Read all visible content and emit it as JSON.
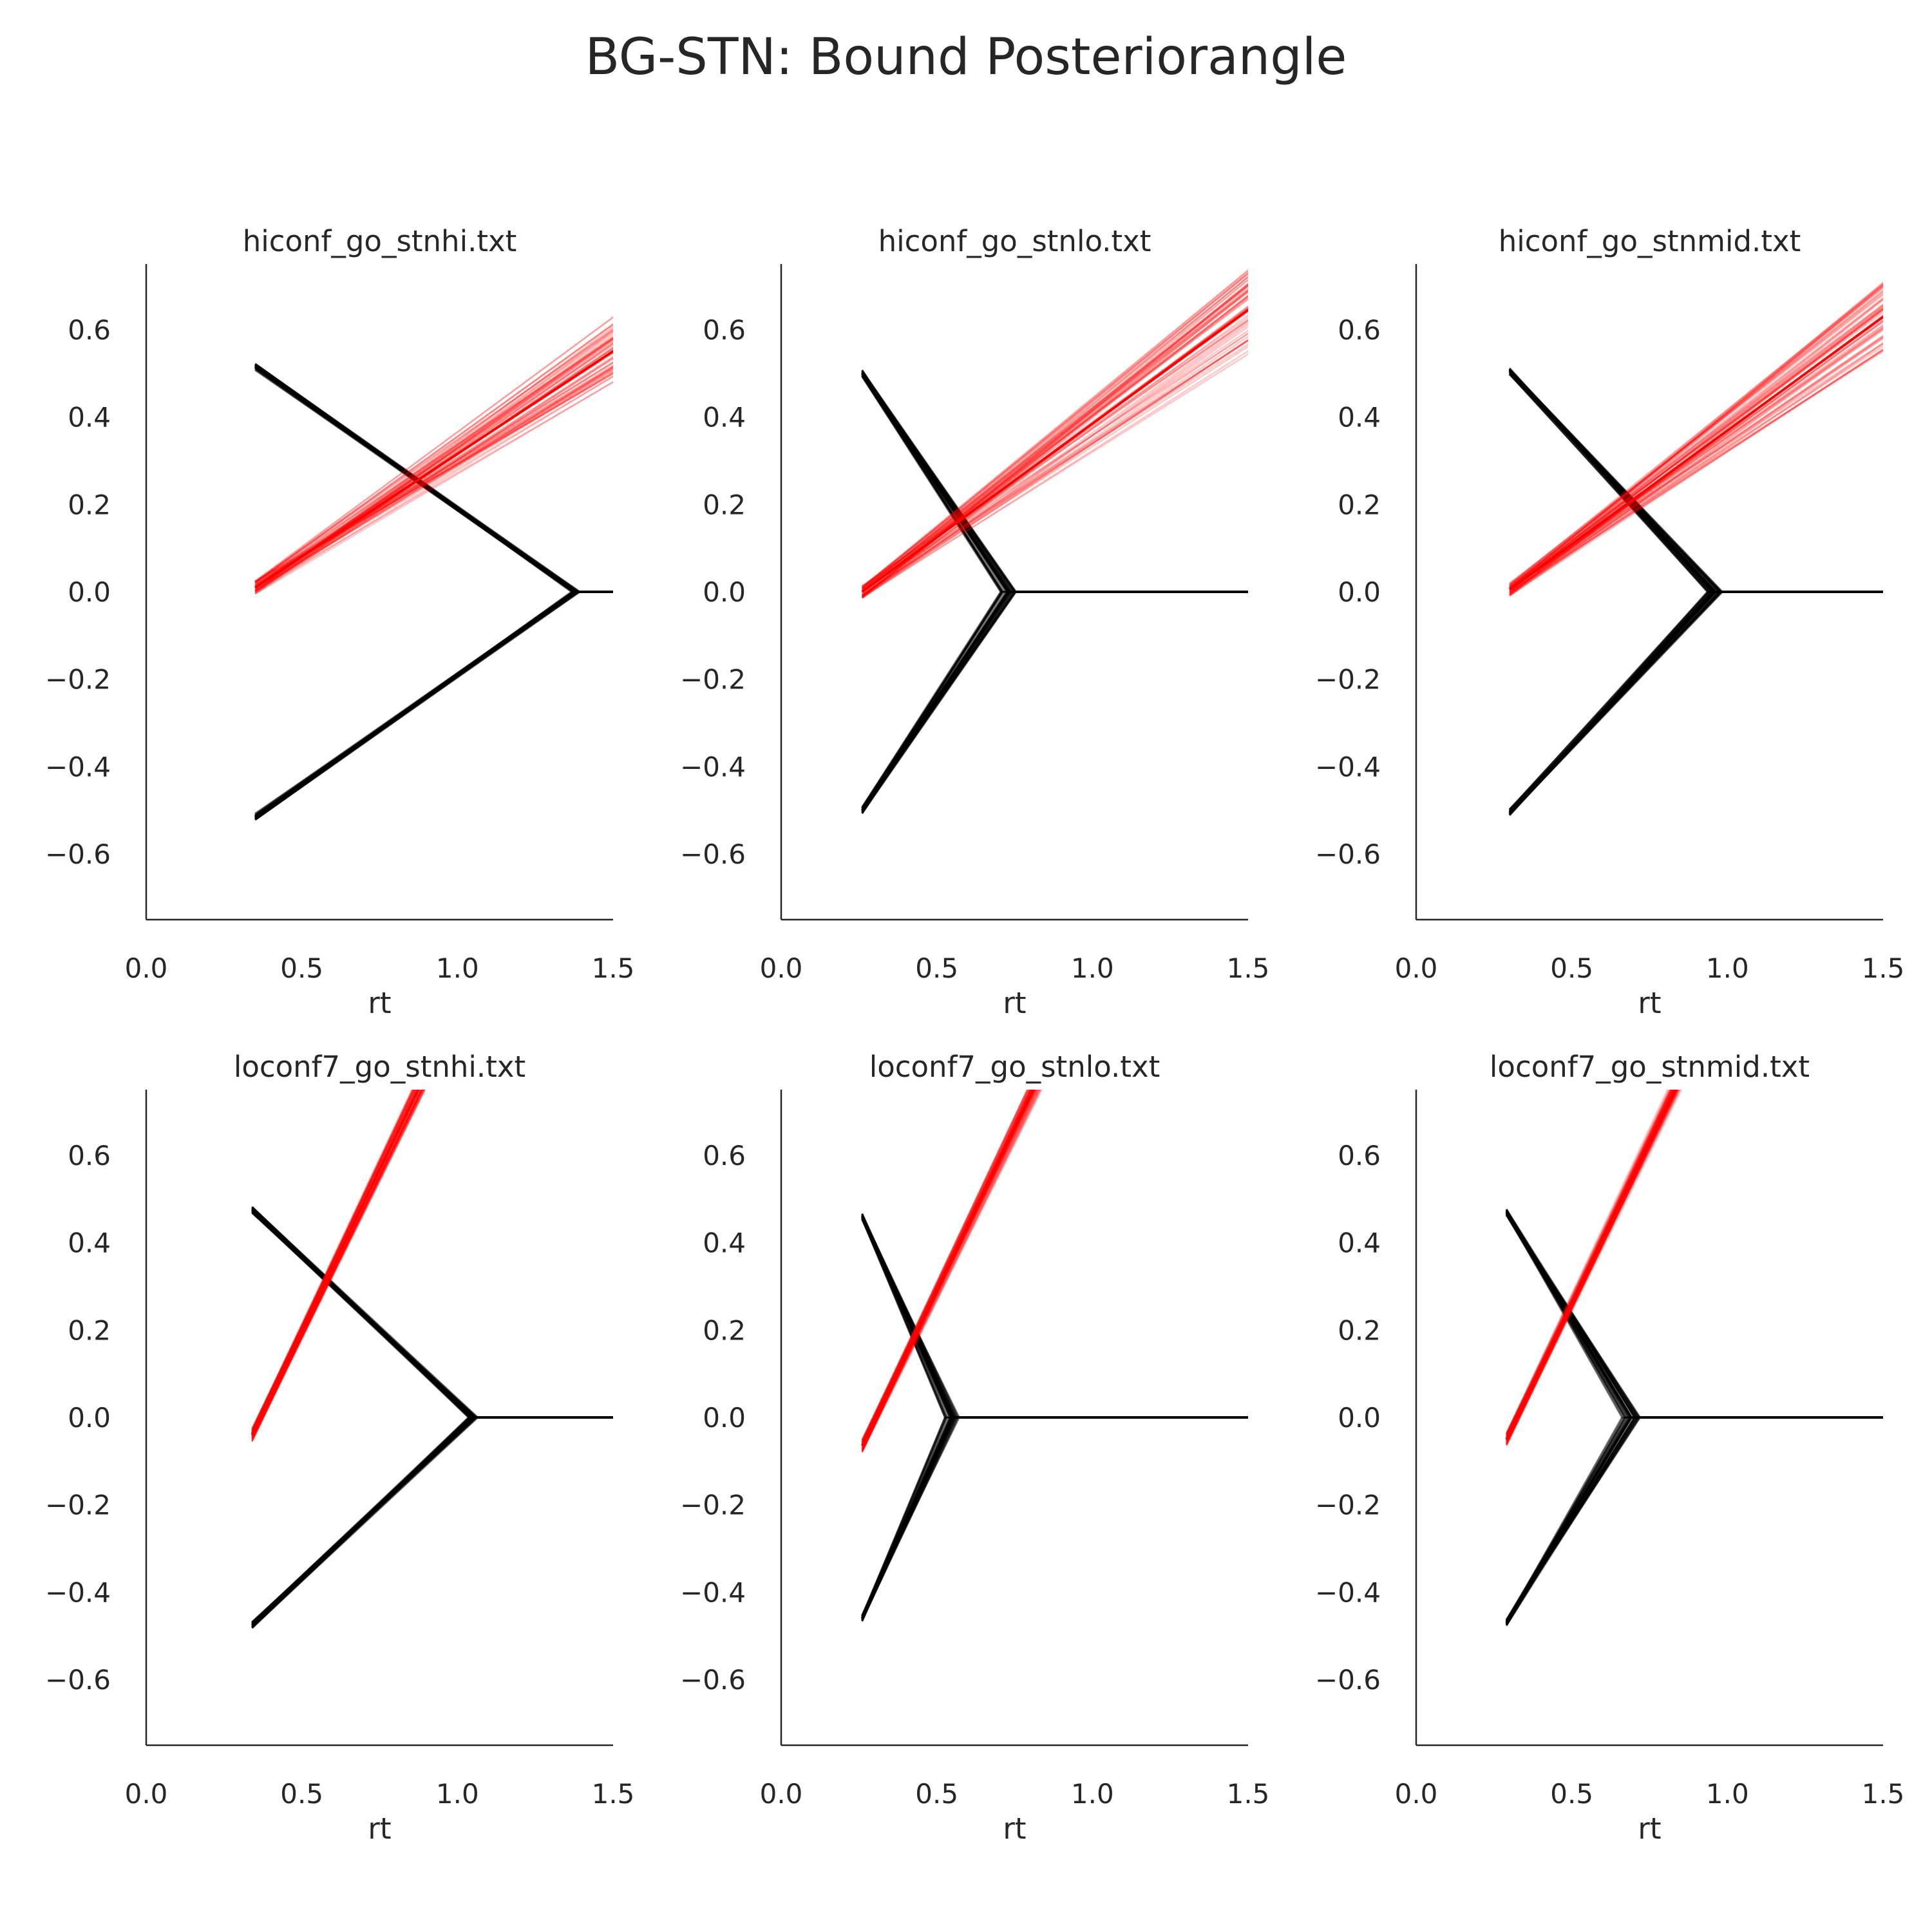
{
  "figure": {
    "title": "BG-STN: Bound Posteriorangle"
  },
  "colors": {
    "bound": "#000000",
    "drift": "#ff0000",
    "text": "#262626"
  },
  "chart_data": [
    {
      "type": "line",
      "title": "hiconf_go_stnhi.txt",
      "xlabel": "rt",
      "ylabel": "",
      "xlim": [
        0.0,
        1.5
      ],
      "ylim": [
        -0.75,
        0.75
      ],
      "xticks": [
        "0.0",
        "0.5",
        "1.0",
        "1.5"
      ],
      "yticks": [
        "−0.6",
        "−0.4",
        "−0.2",
        "0.0",
        "0.2",
        "0.4",
        "0.6"
      ],
      "bound": {
        "t0": 0.35,
        "a": 0.515,
        "t_collapse": 1.38,
        "end": 1.5,
        "spread": 0.03
      },
      "drift": {
        "t0": 0.35,
        "y0": 0.01,
        "slope": 0.47,
        "spread": 0.12
      }
    },
    {
      "type": "line",
      "title": "hiconf_go_stnlo.txt",
      "xlabel": "rt",
      "ylabel": "",
      "xlim": [
        0.0,
        1.5
      ],
      "ylim": [
        -0.75,
        0.75
      ],
      "xticks": [
        "0.0",
        "0.5",
        "1.0",
        "1.5"
      ],
      "yticks": [
        "−0.6",
        "−0.4",
        "−0.2",
        "0.0",
        "0.2",
        "0.4",
        "0.6"
      ],
      "bound": {
        "t0": 0.26,
        "a": 0.5,
        "t_collapse": 0.73,
        "end": 1.5,
        "spread": 0.05
      },
      "drift": {
        "t0": 0.26,
        "y0": 0.0,
        "slope": 0.52,
        "spread": 0.14
      }
    },
    {
      "type": "line",
      "title": "hiconf_go_stnmid.txt",
      "xlabel": "rt",
      "ylabel": "",
      "xlim": [
        0.0,
        1.5
      ],
      "ylim": [
        -0.75,
        0.75
      ],
      "xticks": [
        "0.0",
        "0.5",
        "1.0",
        "1.5"
      ],
      "yticks": [
        "−0.6",
        "−0.4",
        "−0.2",
        "0.0",
        "0.2",
        "0.4",
        "0.6"
      ],
      "bound": {
        "t0": 0.3,
        "a": 0.505,
        "t_collapse": 0.96,
        "end": 1.5,
        "spread": 0.05
      },
      "drift": {
        "t0": 0.3,
        "y0": 0.005,
        "slope": 0.52,
        "spread": 0.14
      }
    },
    {
      "type": "line",
      "title": "loconf7_go_stnhi.txt",
      "xlabel": "rt",
      "ylabel": "",
      "xlim": [
        0.0,
        1.5
      ],
      "ylim": [
        -0.75,
        0.75
      ],
      "xticks": [
        "0.0",
        "0.5",
        "1.0",
        "1.5"
      ],
      "yticks": [
        "−0.6",
        "−0.4",
        "−0.2",
        "0.0",
        "0.2",
        "0.4",
        "0.6"
      ],
      "bound": {
        "t0": 0.34,
        "a": 0.475,
        "t_collapse": 1.05,
        "end": 1.5,
        "spread": 0.03
      },
      "drift": {
        "t0": 0.34,
        "y0": -0.04,
        "slope": 1.48,
        "spread": 0.03
      }
    },
    {
      "type": "line",
      "title": "loconf7_go_stnlo.txt",
      "xlabel": "rt",
      "ylabel": "",
      "xlim": [
        0.0,
        1.5
      ],
      "ylim": [
        -0.75,
        0.75
      ],
      "xticks": [
        "0.0",
        "0.5",
        "1.0",
        "1.5"
      ],
      "yticks": [
        "−0.6",
        "−0.4",
        "−0.2",
        "0.0",
        "0.2",
        "0.4",
        "0.6"
      ],
      "bound": {
        "t0": 0.26,
        "a": 0.46,
        "t_collapse": 0.55,
        "end": 1.5,
        "spread": 0.05
      },
      "drift": {
        "t0": 0.26,
        "y0": -0.065,
        "slope": 1.48,
        "spread": 0.03
      }
    },
    {
      "type": "line",
      "title": "loconf7_go_stnmid.txt",
      "xlabel": "rt",
      "ylabel": "",
      "xlim": [
        0.0,
        1.5
      ],
      "ylim": [
        -0.75,
        0.75
      ],
      "xticks": [
        "0.0",
        "0.5",
        "1.0",
        "1.5"
      ],
      "yticks": [
        "−0.6",
        "−0.4",
        "−0.2",
        "0.0",
        "0.2",
        "0.4",
        "0.6"
      ],
      "bound": {
        "t0": 0.29,
        "a": 0.47,
        "t_collapse": 0.69,
        "end": 1.5,
        "spread": 0.06
      },
      "drift": {
        "t0": 0.29,
        "y0": -0.05,
        "slope": 1.48,
        "spread": 0.03
      }
    }
  ]
}
